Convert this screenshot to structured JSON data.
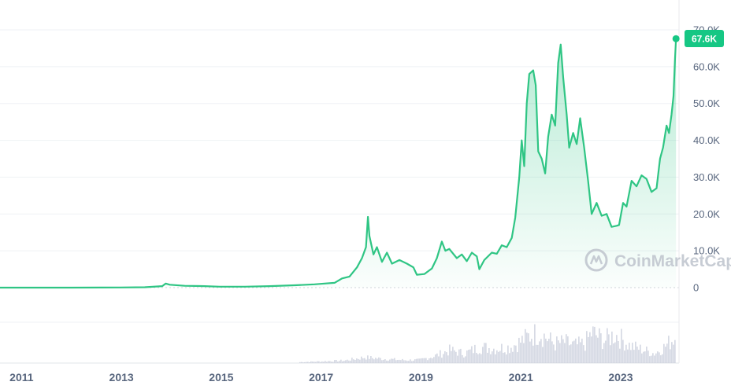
{
  "watermark": "CoinMarketCap",
  "colors": {
    "line": "#2fc584",
    "area_top": "#2fc584",
    "volume": "#c5cad8",
    "grid": "#eff2f5",
    "badge": "#16c784",
    "axis_text": "#58667e"
  },
  "current_price_label": "67.6K",
  "chart_data": {
    "type": "area",
    "x_unit": "year",
    "y_unit": "USD",
    "ylim": [
      0,
      70000
    ],
    "xlim": [
      2010.6,
      2024.2
    ],
    "y_ticks": [
      {
        "value": 0,
        "label": "0"
      },
      {
        "value": 10000,
        "label": "10.0K"
      },
      {
        "value": 20000,
        "label": "20.0K"
      },
      {
        "value": 30000,
        "label": "30.0K"
      },
      {
        "value": 40000,
        "label": "40.0K"
      },
      {
        "value": 50000,
        "label": "50.0K"
      },
      {
        "value": 60000,
        "label": "60.0K"
      },
      {
        "value": 70000,
        "label": "70.0K"
      }
    ],
    "x_ticks": [
      {
        "value": 2011,
        "label": "2011"
      },
      {
        "value": 2013,
        "label": "2013"
      },
      {
        "value": 2015,
        "label": "2015"
      },
      {
        "value": 2017,
        "label": "2017"
      },
      {
        "value": 2019,
        "label": "2019"
      },
      {
        "value": 2021,
        "label": "2021"
      },
      {
        "value": 2023,
        "label": "2023"
      }
    ],
    "grid": true,
    "price": [
      [
        2010.6,
        0
      ],
      [
        2012.0,
        10
      ],
      [
        2013.0,
        50
      ],
      [
        2013.5,
        100
      ],
      [
        2013.85,
        400
      ],
      [
        2013.92,
        1100
      ],
      [
        2014.0,
        800
      ],
      [
        2014.3,
        500
      ],
      [
        2014.7,
        400
      ],
      [
        2015.0,
        250
      ],
      [
        2015.5,
        250
      ],
      [
        2016.0,
        400
      ],
      [
        2016.5,
        650
      ],
      [
        2016.9,
        900
      ],
      [
        2017.0,
        1000
      ],
      [
        2017.3,
        1300
      ],
      [
        2017.45,
        2500
      ],
      [
        2017.6,
        3000
      ],
      [
        2017.75,
        5500
      ],
      [
        2017.85,
        8000
      ],
      [
        2017.93,
        11000
      ],
      [
        2017.97,
        19200
      ],
      [
        2018.0,
        14000
      ],
      [
        2018.08,
        9000
      ],
      [
        2018.15,
        11000
      ],
      [
        2018.25,
        7000
      ],
      [
        2018.35,
        9500
      ],
      [
        2018.45,
        6500
      ],
      [
        2018.6,
        7500
      ],
      [
        2018.75,
        6500
      ],
      [
        2018.88,
        5500
      ],
      [
        2018.95,
        3500
      ],
      [
        2019.1,
        3700
      ],
      [
        2019.25,
        5200
      ],
      [
        2019.35,
        8000
      ],
      [
        2019.45,
        12500
      ],
      [
        2019.52,
        10000
      ],
      [
        2019.6,
        10500
      ],
      [
        2019.75,
        8000
      ],
      [
        2019.85,
        9000
      ],
      [
        2019.95,
        7200
      ],
      [
        2020.05,
        9500
      ],
      [
        2020.15,
        8500
      ],
      [
        2020.2,
        5000
      ],
      [
        2020.3,
        7500
      ],
      [
        2020.45,
        9500
      ],
      [
        2020.55,
        9200
      ],
      [
        2020.65,
        11500
      ],
      [
        2020.75,
        11000
      ],
      [
        2020.85,
        13500
      ],
      [
        2020.92,
        19000
      ],
      [
        2021.0,
        30000
      ],
      [
        2021.05,
        40000
      ],
      [
        2021.1,
        33000
      ],
      [
        2021.15,
        50000
      ],
      [
        2021.2,
        58000
      ],
      [
        2021.28,
        59000
      ],
      [
        2021.33,
        55000
      ],
      [
        2021.38,
        37000
      ],
      [
        2021.45,
        35000
      ],
      [
        2021.52,
        31000
      ],
      [
        2021.58,
        41000
      ],
      [
        2021.65,
        47000
      ],
      [
        2021.72,
        44000
      ],
      [
        2021.78,
        61000
      ],
      [
        2021.83,
        66000
      ],
      [
        2021.88,
        57000
      ],
      [
        2021.95,
        47000
      ],
      [
        2022.0,
        38000
      ],
      [
        2022.08,
        42000
      ],
      [
        2022.15,
        39000
      ],
      [
        2022.22,
        46000
      ],
      [
        2022.3,
        38000
      ],
      [
        2022.38,
        29000
      ],
      [
        2022.45,
        20000
      ],
      [
        2022.55,
        23000
      ],
      [
        2022.65,
        19500
      ],
      [
        2022.75,
        20000
      ],
      [
        2022.85,
        16500
      ],
      [
        2022.95,
        16800
      ],
      [
        2023.0,
        17000
      ],
      [
        2023.08,
        23000
      ],
      [
        2023.15,
        22000
      ],
      [
        2023.25,
        29000
      ],
      [
        2023.35,
        27500
      ],
      [
        2023.45,
        30500
      ],
      [
        2023.55,
        29500
      ],
      [
        2023.65,
        26000
      ],
      [
        2023.75,
        27000
      ],
      [
        2023.82,
        35000
      ],
      [
        2023.88,
        38000
      ],
      [
        2023.95,
        44000
      ],
      [
        2024.0,
        42000
      ],
      [
        2024.05,
        47000
      ],
      [
        2024.09,
        52000
      ],
      [
        2024.12,
        62000
      ],
      [
        2024.14,
        67600
      ]
    ],
    "volume_relative": [
      [
        2016.6,
        0.03
      ],
      [
        2017.0,
        0.05
      ],
      [
        2017.5,
        0.08
      ],
      [
        2017.9,
        0.18
      ],
      [
        2018.2,
        0.14
      ],
      [
        2018.7,
        0.09
      ],
      [
        2019.0,
        0.1
      ],
      [
        2019.3,
        0.22
      ],
      [
        2019.6,
        0.4
      ],
      [
        2019.9,
        0.3
      ],
      [
        2020.2,
        0.5
      ],
      [
        2020.5,
        0.45
      ],
      [
        2020.8,
        0.5
      ],
      [
        2021.0,
        0.65
      ],
      [
        2021.2,
        0.85
      ],
      [
        2021.4,
        0.95
      ],
      [
        2021.7,
        0.6
      ],
      [
        2021.9,
        0.65
      ],
      [
        2022.1,
        0.55
      ],
      [
        2022.3,
        0.6
      ],
      [
        2022.45,
        0.95
      ],
      [
        2022.7,
        0.7
      ],
      [
        2022.9,
        0.9
      ],
      [
        2023.0,
        0.8
      ],
      [
        2023.2,
        0.55
      ],
      [
        2023.5,
        0.4
      ],
      [
        2023.7,
        0.3
      ],
      [
        2023.9,
        0.5
      ],
      [
        2024.1,
        0.8
      ]
    ]
  }
}
